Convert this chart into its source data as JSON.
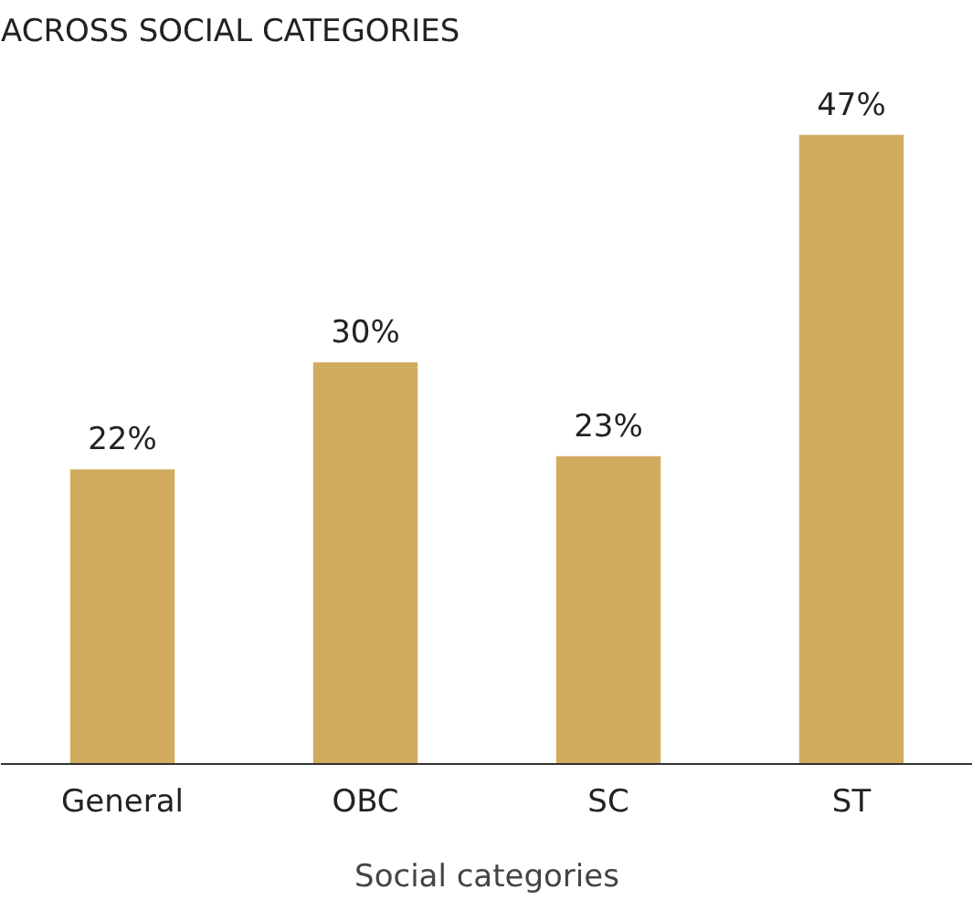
{
  "chart_data": {
    "type": "bar",
    "title": "ACROSS SOCIAL CATEGORIES",
    "xlabel": "Social categories",
    "categories": [
      "General",
      "OBC",
      "SC",
      "ST"
    ],
    "values": [
      22,
      30,
      23,
      47
    ],
    "color": "#d1ac5f",
    "data_labels": true,
    "value_labels": [
      "22%",
      "30%",
      "23%",
      "47%"
    ]
  }
}
